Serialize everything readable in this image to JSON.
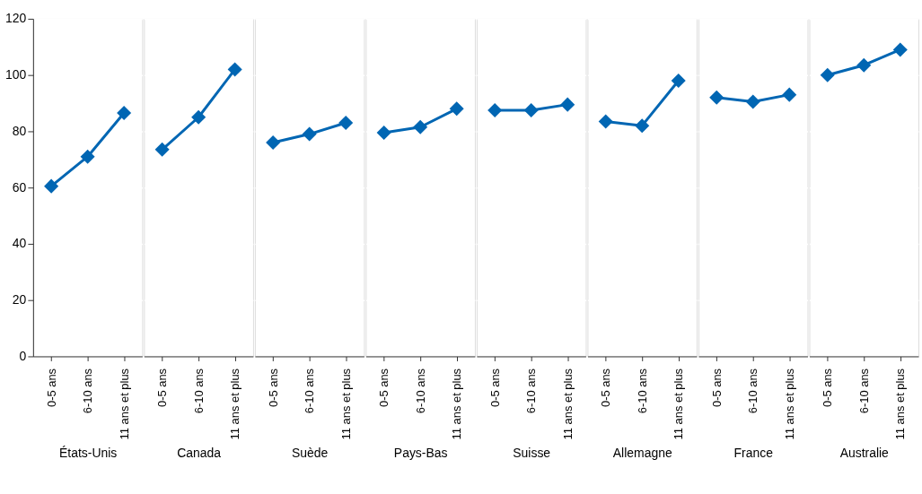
{
  "chart_data": [
    {
      "type": "line",
      "xlabel": "États-Unis",
      "categories": [
        "0-5 ans",
        "6-10 ans",
        "11 ans et plus"
      ],
      "series": [
        {
          "color": "#0066b3",
          "values": [
            60.5,
            71,
            86.5
          ]
        }
      ],
      "ylim": [
        0,
        120
      ],
      "yticks": [
        0,
        20,
        40,
        60,
        80,
        100,
        120
      ],
      "grid": "y",
      "marker": "diamond",
      "line_style": "solid"
    },
    {
      "type": "line",
      "xlabel": "Canada",
      "categories": [
        "0-5 ans",
        "6-10 ans",
        "11 ans et plus"
      ],
      "series": [
        {
          "color": "#0066b3",
          "values": [
            73.5,
            85,
            102
          ]
        }
      ],
      "ylim": [
        0,
        120
      ],
      "yticks": [
        0,
        20,
        40,
        60,
        80,
        100,
        120
      ],
      "grid": "y",
      "marker": "diamond",
      "line_style": "solid",
      "tick_labels": "x"
    },
    {
      "type": "line",
      "xlabel": "Suède",
      "categories": [
        "0-5 ans",
        "6-10 ans",
        "11 ans et plus"
      ],
      "series": [
        {
          "color": "#0066b3",
          "values": [
            76,
            79,
            83
          ]
        }
      ],
      "ylim": [
        0,
        120
      ],
      "yticks": [
        0,
        20,
        40,
        60,
        80,
        100,
        120
      ],
      "grid": "y",
      "marker": "diamond",
      "line_style": "solid",
      "tick_labels": "x"
    },
    {
      "type": "line",
      "xlabel": "Pays-Bas",
      "categories": [
        "0-5 ans",
        "6-10 ans",
        "11 ans et plus"
      ],
      "series": [
        {
          "color": "#0066b3",
          "values": [
            79.5,
            81.5,
            88
          ]
        }
      ],
      "ylim": [
        0,
        120
      ],
      "yticks": [
        0,
        20,
        40,
        60,
        80,
        100,
        120
      ],
      "grid": "y",
      "marker": "diamond",
      "line_style": "solid",
      "tick_labels": "x"
    },
    {
      "type": "line",
      "xlabel": "Suisse",
      "categories": [
        "0-5 ans",
        "6-10 ans",
        "11 ans et plus"
      ],
      "series": [
        {
          "color": "#0066b3",
          "values": [
            87.5,
            87.5,
            89.5
          ]
        }
      ],
      "ylim": [
        0,
        120
      ],
      "yticks": [
        0,
        20,
        40,
        60,
        80,
        100,
        120
      ],
      "grid": "y",
      "marker": "diamond",
      "line_style": "solid",
      "tick_labels": "x"
    },
    {
      "type": "line",
      "xlabel": "Allemagne",
      "categories": [
        "0-5 ans",
        "6-10 ans",
        "11 ans et plus"
      ],
      "series": [
        {
          "color": "#0066b3",
          "values": [
            83.5,
            82,
            98
          ]
        }
      ],
      "ylim": [
        0,
        120
      ],
      "yticks": [
        0,
        20,
        40,
        60,
        80,
        100,
        120
      ],
      "grid": "y",
      "marker": "diamond",
      "line_style": "solid",
      "tick_labels": "x"
    },
    {
      "type": "line",
      "xlabel": "France",
      "categories": [
        "0-5 ans",
        "6-10 ans",
        "11 ans et plus"
      ],
      "series": [
        {
          "color": "#0066b3",
          "values": [
            92,
            90.5,
            93
          ]
        }
      ],
      "ylim": [
        0,
        120
      ],
      "yticks": [
        0,
        20,
        40,
        60,
        80,
        100,
        120
      ],
      "grid": "y",
      "marker": "diamond",
      "line_style": "solid",
      "tick_labels": "x"
    },
    {
      "type": "line",
      "xlabel": "Australie",
      "categories": [
        "0-5 ans",
        "6-10 ans",
        "11 ans et plus"
      ],
      "series": [
        {
          "color": "#0066b3",
          "values": [
            100,
            103.5,
            109
          ]
        }
      ],
      "ylim": [
        0,
        120
      ],
      "yticks": [
        0,
        20,
        40,
        60,
        80,
        100,
        120
      ],
      "grid": "y",
      "marker": "diamond",
      "line_style": "solid",
      "tick_labels": "x"
    }
  ]
}
